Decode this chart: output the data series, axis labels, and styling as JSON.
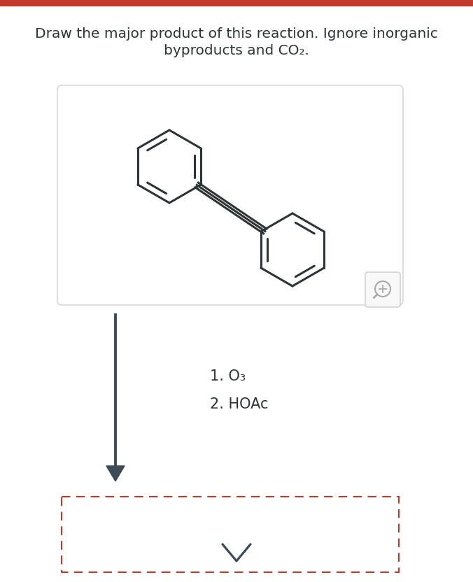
{
  "title_line1": "Draw the major product of this reaction. Ignore inorganic",
  "title_line2": "byproducts and CO₂.",
  "title_fontsize": 14.5,
  "title_color": "#2d3436",
  "bg_color": "#ffffff",
  "top_bar_color": "#c0392b",
  "box_edge_color": "#d0d0d0",
  "molecule_color": "#2d3436",
  "molecule_linewidth": 2.2,
  "arrow_color": "#3d4b56",
  "step1_text": "1. O₃",
  "step2_text": "2. HOAc",
  "reaction_fontsize": 15,
  "dashed_box_color": "#c0392b",
  "chevron_color": "#3d4b56",
  "mag_color": "#aaaaaa"
}
